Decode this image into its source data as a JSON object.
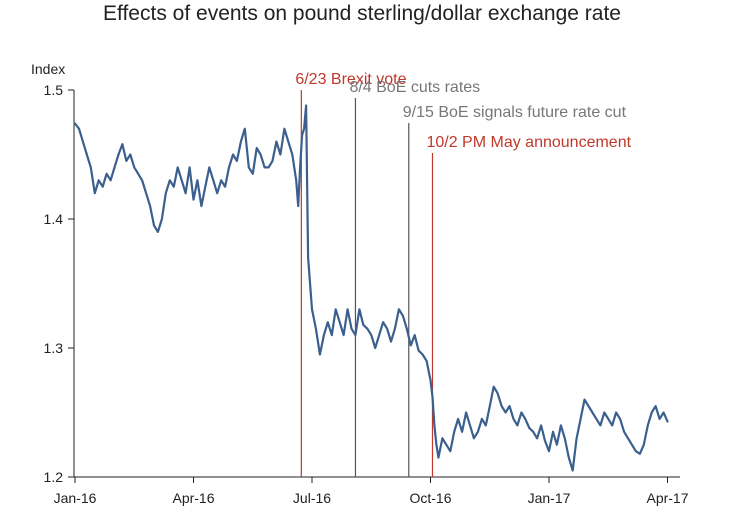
{
  "chart_data": {
    "type": "line",
    "title": "Effects of events on pound sterling/dollar exchange rate",
    "ylabel": "Index",
    "xlabel": "",
    "ylim": [
      1.2,
      1.5
    ],
    "y_ticks": [
      {
        "value": 1.2,
        "label": "1.2"
      },
      {
        "value": 1.3,
        "label": "1.3"
      },
      {
        "value": 1.4,
        "label": "1.4"
      },
      {
        "value": 1.5,
        "label": "1.5"
      }
    ],
    "x_range": [
      0,
      15.2
    ],
    "x_ticks": [
      {
        "value": 0,
        "label": "Jan-16"
      },
      {
        "value": 3,
        "label": "Apr-16"
      },
      {
        "value": 6,
        "label": "Jul-16"
      },
      {
        "value": 9,
        "label": "Oct-16"
      },
      {
        "value": 12,
        "label": "Jan-17"
      },
      {
        "value": 15,
        "label": "Apr-17"
      }
    ],
    "colors": {
      "line": "#3b5f8e",
      "red": "#c0392b",
      "gray": "#555555",
      "gray_text": "#777777",
      "axis": "#222222"
    },
    "series": [
      {
        "name": "Pound sterling/dollar",
        "x": [
          0,
          0.1,
          0.2,
          0.3,
          0.4,
          0.5,
          0.6,
          0.7,
          0.8,
          0.9,
          1.0,
          1.1,
          1.2,
          1.3,
          1.4,
          1.5,
          1.6,
          1.7,
          1.8,
          1.9,
          2.0,
          2.1,
          2.2,
          2.3,
          2.4,
          2.5,
          2.6,
          2.7,
          2.8,
          2.9,
          3.0,
          3.1,
          3.2,
          3.3,
          3.4,
          3.5,
          3.6,
          3.7,
          3.8,
          3.9,
          4.0,
          4.1,
          4.2,
          4.3,
          4.4,
          4.5,
          4.6,
          4.7,
          4.8,
          4.9,
          5.0,
          5.1,
          5.2,
          5.3,
          5.4,
          5.5,
          5.6,
          5.65,
          5.7,
          5.75,
          5.8,
          5.85,
          5.9,
          6.0,
          6.1,
          6.2,
          6.3,
          6.4,
          6.5,
          6.6,
          6.7,
          6.8,
          6.9,
          7.0,
          7.1,
          7.2,
          7.3,
          7.4,
          7.5,
          7.6,
          7.7,
          7.8,
          7.9,
          8.0,
          8.1,
          8.2,
          8.3,
          8.4,
          8.5,
          8.6,
          8.7,
          8.8,
          8.9,
          9.0,
          9.05,
          9.1,
          9.15,
          9.2,
          9.3,
          9.4,
          9.5,
          9.6,
          9.7,
          9.8,
          9.9,
          10.0,
          10.1,
          10.2,
          10.3,
          10.4,
          10.5,
          10.6,
          10.7,
          10.8,
          10.9,
          11.0,
          11.1,
          11.2,
          11.3,
          11.4,
          11.5,
          11.6,
          11.7,
          11.8,
          11.9,
          12.0,
          12.1,
          12.2,
          12.3,
          12.4,
          12.5,
          12.6,
          12.7,
          12.8,
          12.9,
          13.0,
          13.1,
          13.2,
          13.3,
          13.4,
          13.5,
          13.6,
          13.7,
          13.8,
          13.9,
          14.0,
          14.1,
          14.2,
          14.3,
          14.4,
          14.5,
          14.6,
          14.7,
          14.8,
          14.9,
          15.0
        ],
        "values": [
          1.474,
          1.47,
          1.46,
          1.45,
          1.44,
          1.42,
          1.43,
          1.425,
          1.435,
          1.43,
          1.44,
          1.45,
          1.458,
          1.445,
          1.45,
          1.44,
          1.435,
          1.43,
          1.42,
          1.41,
          1.395,
          1.39,
          1.4,
          1.42,
          1.43,
          1.425,
          1.44,
          1.43,
          1.42,
          1.44,
          1.415,
          1.43,
          1.41,
          1.425,
          1.44,
          1.43,
          1.42,
          1.43,
          1.425,
          1.44,
          1.45,
          1.445,
          1.46,
          1.47,
          1.44,
          1.435,
          1.455,
          1.45,
          1.44,
          1.44,
          1.445,
          1.46,
          1.45,
          1.47,
          1.46,
          1.45,
          1.43,
          1.41,
          1.44,
          1.465,
          1.47,
          1.488,
          1.37,
          1.33,
          1.315,
          1.295,
          1.31,
          1.32,
          1.31,
          1.33,
          1.32,
          1.31,
          1.33,
          1.315,
          1.31,
          1.33,
          1.318,
          1.315,
          1.31,
          1.3,
          1.31,
          1.32,
          1.315,
          1.305,
          1.315,
          1.33,
          1.325,
          1.315,
          1.302,
          1.31,
          1.298,
          1.295,
          1.29,
          1.275,
          1.262,
          1.24,
          1.225,
          1.215,
          1.23,
          1.225,
          1.22,
          1.235,
          1.245,
          1.235,
          1.25,
          1.24,
          1.23,
          1.235,
          1.245,
          1.24,
          1.255,
          1.27,
          1.265,
          1.255,
          1.25,
          1.255,
          1.245,
          1.24,
          1.25,
          1.245,
          1.238,
          1.235,
          1.23,
          1.24,
          1.228,
          1.22,
          1.235,
          1.225,
          1.24,
          1.23,
          1.215,
          1.205,
          1.23,
          1.245,
          1.26,
          1.255,
          1.25,
          1.245,
          1.24,
          1.25,
          1.245,
          1.24,
          1.25,
          1.245,
          1.235,
          1.23,
          1.225,
          1.22,
          1.218,
          1.225,
          1.24,
          1.25,
          1.255,
          1.245,
          1.25,
          1.243
        ]
      }
    ],
    "events": [
      {
        "x": 5.73,
        "label": "6/23 Brexit vote",
        "color": "red"
      },
      {
        "x": 7.1,
        "label": "8/4 BoE cuts rates",
        "color": "gray"
      },
      {
        "x": 8.45,
        "label": "9/15 BoE signals future rate cut",
        "color": "gray"
      },
      {
        "x": 9.05,
        "label": "10/2 PM May announcement",
        "color": "red"
      }
    ]
  }
}
